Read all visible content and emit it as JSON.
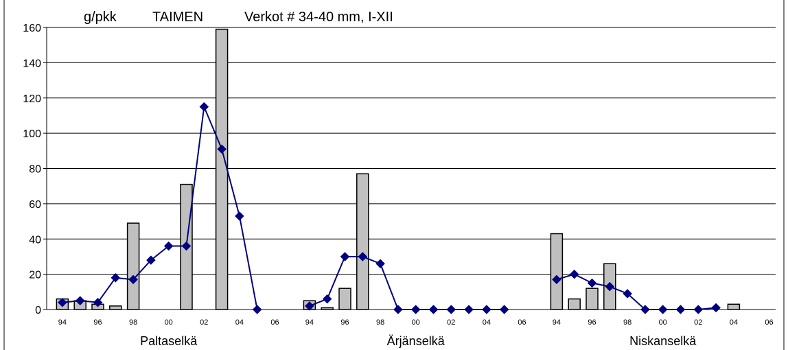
{
  "chart_data": {
    "type": "bar+line",
    "title_parts": [
      "g/pkk",
      "TAIMEN",
      "Verkot # 34-40 mm, I-XII"
    ],
    "xlabel": "",
    "ylabel": "",
    "ylim": [
      0,
      160
    ],
    "yticks": [
      0,
      20,
      40,
      60,
      80,
      100,
      120,
      140,
      160
    ],
    "grid": true,
    "legend": "none",
    "colors": {
      "bar_fill": "#c0c0c0",
      "bar_stroke": "#000000",
      "line": "#000080",
      "marker": "#000080"
    },
    "groups": [
      {
        "name": "Paltaselkä",
        "year_labels": [
          "94",
          "96",
          "98",
          "00",
          "02",
          "04",
          "06"
        ],
        "x": [
          "94",
          "95",
          "96",
          "97",
          "98",
          "99",
          "00",
          "01",
          "02",
          "03",
          "04",
          "05",
          "06"
        ],
        "bars": [
          6,
          5,
          3,
          2,
          49,
          null,
          null,
          71,
          null,
          159,
          null,
          null,
          null
        ],
        "line": [
          4,
          5,
          4,
          18,
          17,
          28,
          36,
          36,
          115,
          91,
          53,
          0,
          null
        ]
      },
      {
        "name": "Ärjänselkä",
        "year_labels": [
          "94",
          "96",
          "98",
          "00",
          "02",
          "04",
          "06"
        ],
        "x": [
          "94",
          "95",
          "96",
          "97",
          "98",
          "99",
          "00",
          "01",
          "02",
          "03",
          "04",
          "05",
          "06"
        ],
        "bars": [
          5,
          1,
          12,
          77,
          null,
          null,
          null,
          null,
          null,
          null,
          null,
          null,
          null
        ],
        "line": [
          2,
          6,
          30,
          30,
          26,
          0,
          0,
          0,
          0,
          0,
          0,
          0,
          null
        ]
      },
      {
        "name": "Niskanselkä",
        "year_labels": [
          "94",
          "96",
          "98",
          "00",
          "02",
          "04",
          "06"
        ],
        "x": [
          "94",
          "95",
          "96",
          "97",
          "98",
          "99",
          "00",
          "01",
          "02",
          "03",
          "04",
          "05",
          "06"
        ],
        "bars": [
          43,
          6,
          12,
          26,
          null,
          null,
          null,
          null,
          null,
          null,
          3,
          null,
          null
        ],
        "line": [
          17,
          20,
          15,
          13,
          9,
          0,
          0,
          0,
          0,
          1,
          null,
          null,
          null
        ]
      }
    ]
  }
}
